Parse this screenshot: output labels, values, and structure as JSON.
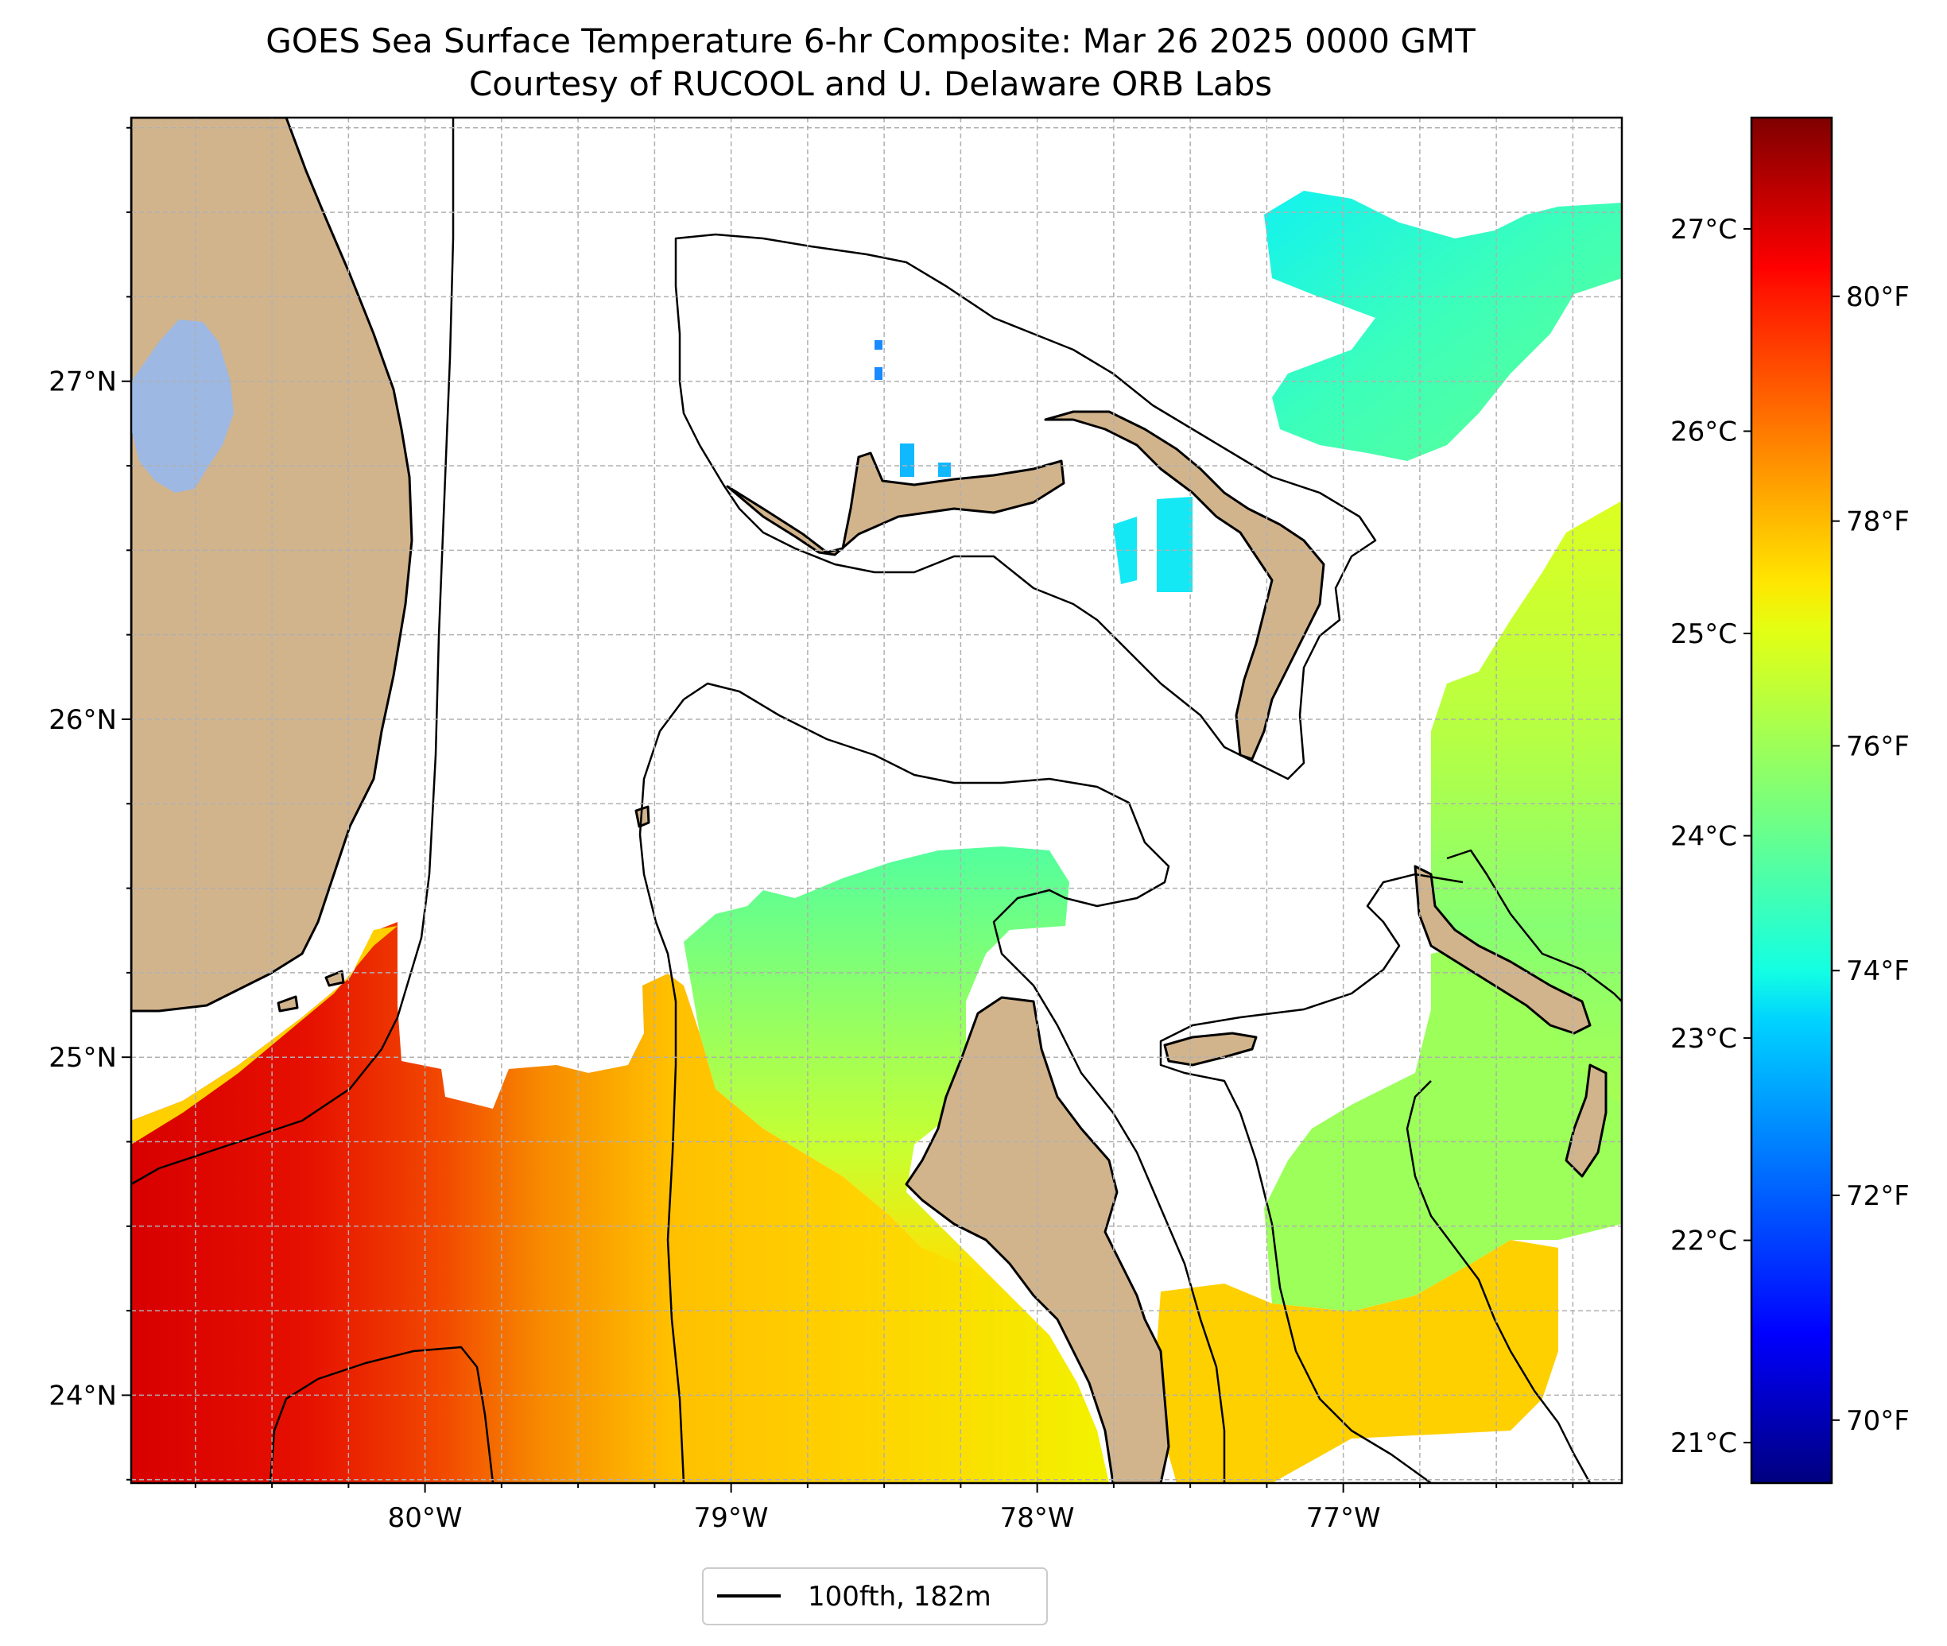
{
  "title": {
    "line1": "GOES Sea Surface Temperature 6-hr Composite: Mar 26 2025 0000 GMT",
    "line2": "Courtesy of RUCOOL and U. Delaware ORB Labs"
  },
  "map": {
    "lon_range": [
      -80.96,
      -76.09
    ],
    "lat_range": [
      23.74,
      27.78
    ],
    "lon_ticks": [
      {
        "value": -80,
        "label": "80°W"
      },
      {
        "value": -79,
        "label": "79°W"
      },
      {
        "value": -78,
        "label": "78°W"
      },
      {
        "value": -77,
        "label": "77°W"
      }
    ],
    "lat_ticks": [
      {
        "value": 24,
        "label": "24°N"
      },
      {
        "value": 25,
        "label": "25°N"
      },
      {
        "value": 26,
        "label": "26°N"
      },
      {
        "value": 27,
        "label": "27°N"
      }
    ],
    "gridlines": true,
    "colors": {
      "land": "#d2b48c",
      "lake": "#9db8e3",
      "ocean_nodata": "#ffffff",
      "contour": "#000000"
    }
  },
  "colorbar": {
    "colormap": "jet",
    "range_c": [
      20.8,
      27.55
    ],
    "celsius_ticks": [
      {
        "value": 21,
        "label": "21°C"
      },
      {
        "value": 22,
        "label": "22°C"
      },
      {
        "value": 23,
        "label": "23°C"
      },
      {
        "value": 24,
        "label": "24°C"
      },
      {
        "value": 25,
        "label": "25°C"
      },
      {
        "value": 26,
        "label": "26°C"
      },
      {
        "value": 27,
        "label": "27°C"
      }
    ],
    "fahrenheit_ticks": [
      {
        "value": 70,
        "label": "70°F"
      },
      {
        "value": 72,
        "label": "72°F"
      },
      {
        "value": 74,
        "label": "74°F"
      },
      {
        "value": 76,
        "label": "76°F"
      },
      {
        "value": 78,
        "label": "78°F"
      },
      {
        "value": 80,
        "label": "80°F"
      }
    ]
  },
  "legend": {
    "position": "bottom-center",
    "entries": [
      {
        "label": "100fth, 182m",
        "color": "#000000"
      }
    ]
  }
}
